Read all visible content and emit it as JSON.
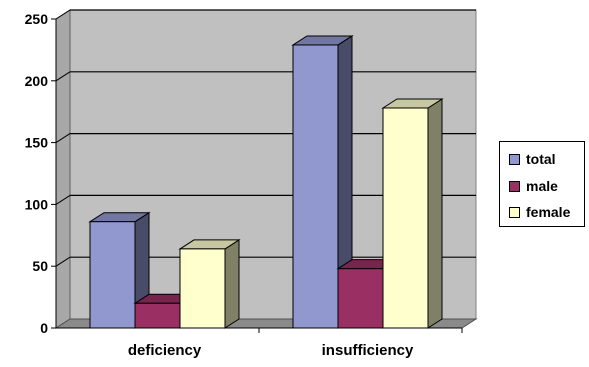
{
  "chart_data": {
    "type": "bar",
    "title": "",
    "xlabel": "",
    "ylabel": "",
    "categories": [
      "deficiency",
      "insufficiency"
    ],
    "series": [
      {
        "name": "total",
        "values": [
          86,
          229
        ],
        "color": "#9198CF"
      },
      {
        "name": "male",
        "values": [
          20,
          48
        ],
        "color": "#9A2F63"
      },
      {
        "name": "female",
        "values": [
          64,
          178
        ],
        "color": "#FFFFCE"
      }
    ],
    "ylim": [
      0,
      250
    ],
    "yticks": [
      "0",
      "50",
      "100",
      "150",
      "200",
      "250"
    ],
    "grid": true,
    "legend_position": "right",
    "plot_background": "#C0C0C0"
  }
}
